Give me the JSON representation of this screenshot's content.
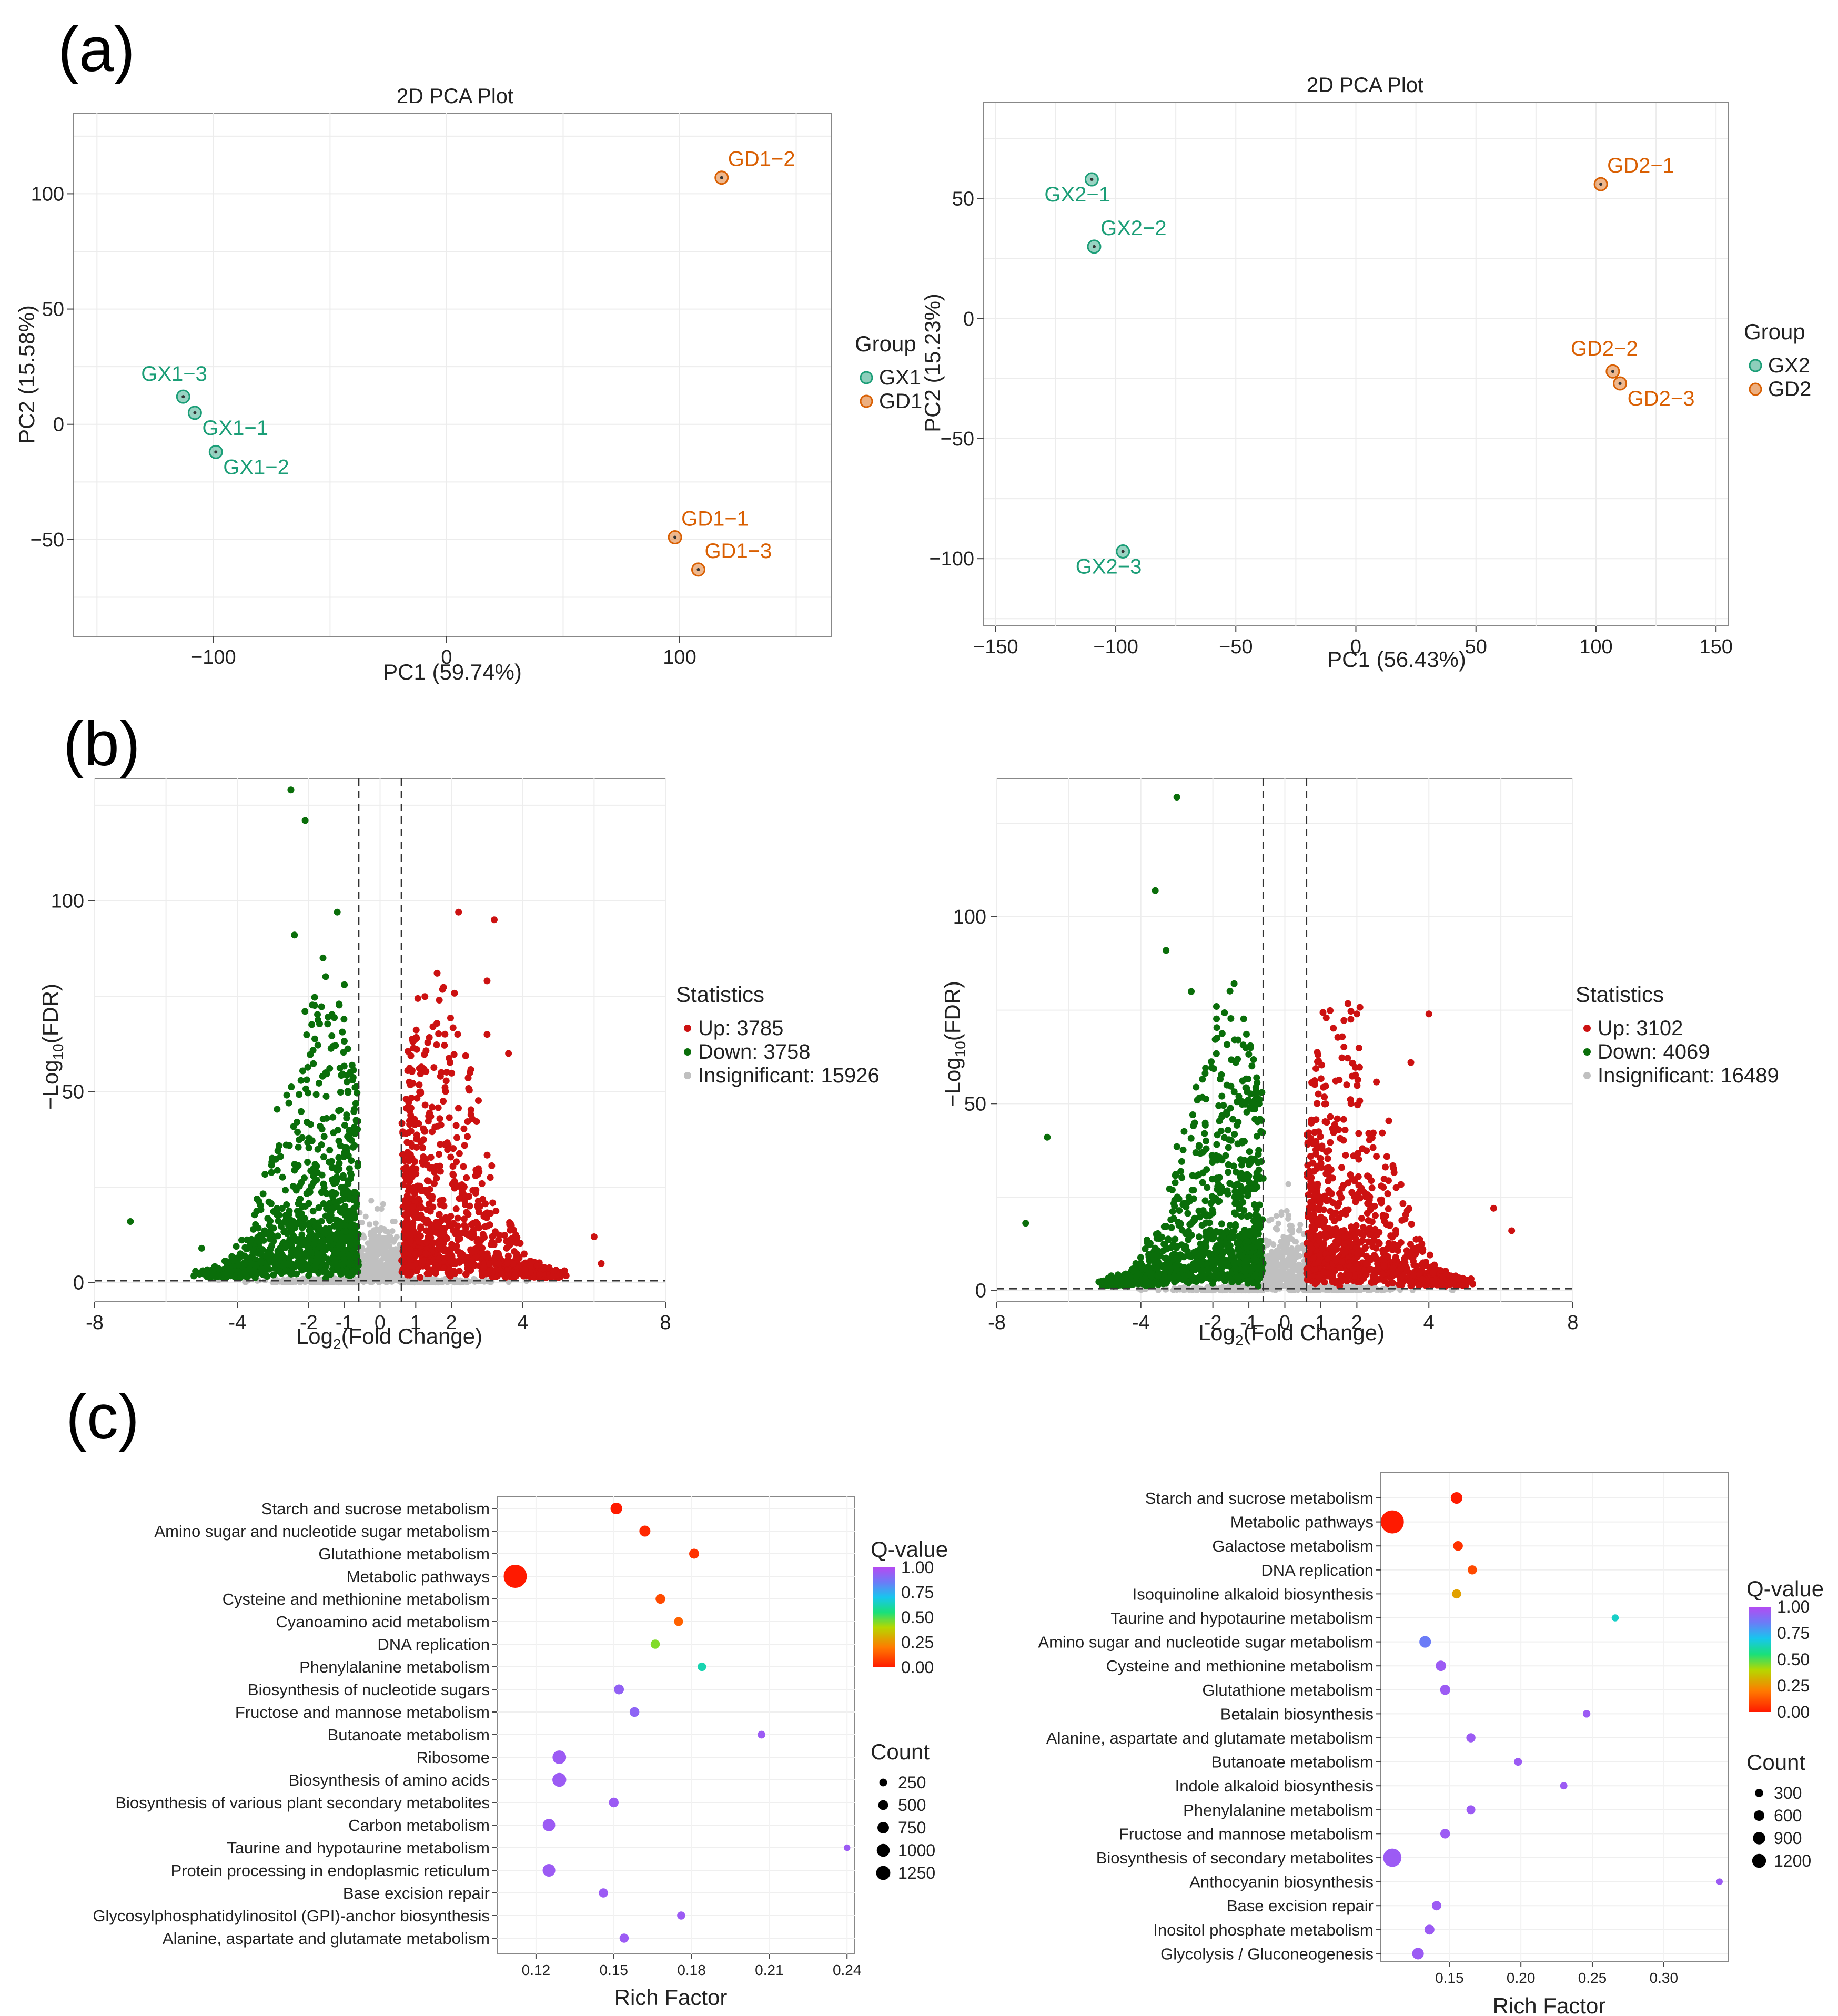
{
  "panels": {
    "a": "(a)",
    "b": "(b)",
    "c": "(c)"
  },
  "colors": {
    "gx": "#1b9e77",
    "gd": "#d95f02",
    "up": "#cc1111",
    "down": "#0a6e0a",
    "ns": "#c0c0c0"
  },
  "chart_data": [
    {
      "type": "scatter",
      "id": "pca1",
      "title": "2D PCA Plot",
      "xlabel": "PC1 (59.74%)",
      "ylabel": "PC2 (15.58%)",
      "xlim": [
        -160,
        165
      ],
      "ylim": [
        -92,
        135
      ],
      "xticks": [
        -100,
        0,
        100
      ],
      "xtick_labels": [
        "−100",
        "0",
        "100"
      ],
      "yticks": [
        -50,
        0,
        50,
        100
      ],
      "ytick_labels": [
        "−50",
        "0",
        "50",
        "100"
      ],
      "legend": {
        "title": "Group",
        "entries": [
          "GX1",
          "GD1"
        ]
      },
      "points": [
        {
          "label": "GD1−2",
          "x": 118,
          "y": 107,
          "group": 1,
          "anchor": "ne"
        },
        {
          "label": "GX1−3",
          "x": -113,
          "y": 12,
          "group": 0,
          "anchor": "nw"
        },
        {
          "label": "GX1−1",
          "x": -108,
          "y": 5,
          "group": 0,
          "anchor": "se"
        },
        {
          "label": "GX1−2",
          "x": -99,
          "y": -12,
          "group": 0,
          "anchor": "se"
        },
        {
          "label": "GD1−1",
          "x": 98,
          "y": -49,
          "group": 1,
          "anchor": "ne"
        },
        {
          "label": "GD1−3",
          "x": 108,
          "y": -63,
          "group": 1,
          "anchor": "ne"
        }
      ]
    },
    {
      "type": "scatter",
      "id": "pca2",
      "title": "2D PCA Plot",
      "xlabel": "PC1 (56.43%)",
      "ylabel": "PC2 (15.23%)",
      "xlim": [
        -155,
        155
      ],
      "ylim": [
        -128,
        90
      ],
      "xticks": [
        -150,
        -100,
        -50,
        0,
        50,
        100,
        150
      ],
      "xtick_labels": [
        "−150",
        "−100",
        "−50",
        "0",
        "50",
        "100",
        "150"
      ],
      "yticks": [
        -100,
        -50,
        0,
        50
      ],
      "ytick_labels": [
        "−100",
        "−50",
        "0",
        "50"
      ],
      "legend": {
        "title": "Group",
        "entries": [
          "GX2",
          "GD2"
        ]
      },
      "points": [
        {
          "label": "GX2−1",
          "x": -110,
          "y": 58,
          "group": 0,
          "anchor": "sw"
        },
        {
          "label": "GD2−1",
          "x": 102,
          "y": 56,
          "group": 1,
          "anchor": "ne"
        },
        {
          "label": "GX2−2",
          "x": -109,
          "y": 30,
          "group": 0,
          "anchor": "ne"
        },
        {
          "label": "GD2−2",
          "x": 107,
          "y": -22,
          "group": 1,
          "anchor": "nw"
        },
        {
          "label": "GD2−3",
          "x": 110,
          "y": -27,
          "group": 1,
          "anchor": "se"
        },
        {
          "label": "GX2−3",
          "x": -97,
          "y": -97,
          "group": 0,
          "anchor": "sw"
        }
      ]
    },
    {
      "type": "scatter",
      "id": "volcano1",
      "xlabel": "Log2(Fold Change)",
      "ylabel": "−Log10(FDR)",
      "xlim": [
        -8,
        8
      ],
      "ylim": [
        -5,
        132
      ],
      "xticks": [
        -8,
        -4,
        -2,
        -1,
        0,
        1,
        2,
        4,
        8
      ],
      "xtick_labels": [
        "-8",
        "-4",
        "-2",
        "-1",
        "0",
        "1",
        "2",
        "4",
        "8"
      ],
      "yticks": [
        0,
        50,
        100
      ],
      "ytick_labels": [
        "0",
        "50",
        "100"
      ],
      "fc_threshold": 0.6,
      "fdr_threshold": 0.5,
      "legend": {
        "title": "Statistics",
        "entries": [
          "Up: 3785",
          "Down: 3758",
          "Insignificant: 15926"
        ]
      },
      "counts": {
        "up": 3785,
        "down": 3758,
        "ns": 15926
      },
      "highlights": [
        {
          "x": -2.5,
          "y": 129
        },
        {
          "x": -2.1,
          "y": 121
        },
        {
          "x": -1.2,
          "y": 97
        },
        {
          "x": -2.4,
          "y": 91
        },
        {
          "x": -1.6,
          "y": 85
        },
        {
          "x": -1.0,
          "y": 78
        },
        {
          "x": 2.2,
          "y": 97
        },
        {
          "x": 3.2,
          "y": 95
        },
        {
          "x": 1.6,
          "y": 81
        },
        {
          "x": 3.0,
          "y": 79
        },
        {
          "x": 3.0,
          "y": 65
        },
        {
          "x": 3.6,
          "y": 60
        },
        {
          "x": -7.0,
          "y": 16
        },
        {
          "x": -5.0,
          "y": 9
        },
        {
          "x": 6.0,
          "y": 12
        },
        {
          "x": 6.2,
          "y": 5
        }
      ]
    },
    {
      "type": "scatter",
      "id": "volcano2",
      "xlabel": "Log2(Fold Change)",
      "ylabel": "−Log10(FDR)",
      "xlim": [
        -8,
        8
      ],
      "ylim": [
        -3,
        137
      ],
      "xticks": [
        -8,
        -4,
        -2,
        -1,
        0,
        1,
        2,
        4,
        8
      ],
      "xtick_labels": [
        "-8",
        "-4",
        "-2",
        "-1",
        "0",
        "1",
        "2",
        "4",
        "8"
      ],
      "yticks": [
        0,
        50,
        100
      ],
      "ytick_labels": [
        "0",
        "50",
        "100"
      ],
      "fc_threshold": 0.6,
      "fdr_threshold": 0.5,
      "legend": {
        "title": "Statistics",
        "entries": [
          "Up: 3102",
          "Down: 4069",
          "Insignificant: 16489"
        ]
      },
      "counts": {
        "up": 3102,
        "down": 4069,
        "ns": 16489
      },
      "highlights": [
        {
          "x": -3.0,
          "y": 132
        },
        {
          "x": -3.6,
          "y": 107
        },
        {
          "x": -3.3,
          "y": 91
        },
        {
          "x": -2.6,
          "y": 80
        },
        {
          "x": -1.9,
          "y": 76
        },
        {
          "x": 2.0,
          "y": 74
        },
        {
          "x": 4.0,
          "y": 74
        },
        {
          "x": 3.5,
          "y": 61
        },
        {
          "x": -6.6,
          "y": 41
        },
        {
          "x": 5.8,
          "y": 22
        },
        {
          "x": 6.3,
          "y": 16
        },
        {
          "x": -7.2,
          "y": 18
        }
      ]
    },
    {
      "type": "scatter",
      "id": "kegg1",
      "xlabel": "Rich Factor",
      "xlim": [
        0.105,
        0.243
      ],
      "xticks": [
        0.12,
        0.15,
        0.18,
        0.21,
        0.24
      ],
      "xtick_labels": [
        "0.12",
        "0.15",
        "0.18",
        "0.21",
        "0.24"
      ],
      "qlegend": {
        "title": "Q-value",
        "labels": [
          "1.00",
          "0.75",
          "0.50",
          "0.25",
          "0.00"
        ]
      },
      "count_legend": {
        "title": "Count",
        "labels": [
          "250",
          "500",
          "750",
          "1000",
          "1250"
        ],
        "values": [
          250,
          500,
          750,
          1000,
          1250
        ]
      },
      "count_max": 1300,
      "pathways": [
        {
          "name": "Starch and sucrose metabolism",
          "rich": 0.151,
          "q": 0.0,
          "count": 200
        },
        {
          "name": "Amino sugar and nucleotide sugar metabolism",
          "rich": 0.162,
          "q": 0.03,
          "count": 170
        },
        {
          "name": "Glutathione metabolism",
          "rich": 0.181,
          "q": 0.05,
          "count": 120
        },
        {
          "name": "Metabolic pathways",
          "rich": 0.112,
          "q": 0.0,
          "count": 1300
        },
        {
          "name": "Cysteine and methionine metabolism",
          "rich": 0.168,
          "q": 0.1,
          "count": 110
        },
        {
          "name": "Cyanoamino acid metabolism",
          "rich": 0.175,
          "q": 0.15,
          "count": 80
        },
        {
          "name": "DNA replication",
          "rich": 0.166,
          "q": 0.45,
          "count": 90
        },
        {
          "name": "Phenylalanine metabolism",
          "rich": 0.184,
          "q": 0.62,
          "count": 70
        },
        {
          "name": "Biosynthesis of nucleotide sugars",
          "rich": 0.152,
          "q": 0.93,
          "count": 120
        },
        {
          "name": "Fructose and mannose metabolism",
          "rich": 0.158,
          "q": 0.92,
          "count": 110
        },
        {
          "name": "Butanoate metabolism",
          "rich": 0.207,
          "q": 0.95,
          "count": 45
        },
        {
          "name": "Ribosome",
          "rich": 0.129,
          "q": 0.95,
          "count": 320
        },
        {
          "name": "Biosynthesis of amino acids",
          "rich": 0.129,
          "q": 0.95,
          "count": 340
        },
        {
          "name": "Biosynthesis of various plant secondary metabolites",
          "rich": 0.15,
          "q": 0.95,
          "count": 110
        },
        {
          "name": "Carbon metabolism",
          "rich": 0.125,
          "q": 0.95,
          "count": 250
        },
        {
          "name": "Taurine and hypotaurine metabolism",
          "rich": 0.24,
          "q": 0.95,
          "count": 20
        },
        {
          "name": "Protein processing in endoplasmic reticulum",
          "rich": 0.125,
          "q": 0.95,
          "count": 260
        },
        {
          "name": "Base excision repair",
          "rich": 0.146,
          "q": 0.95,
          "count": 90
        },
        {
          "name": "Glycosylphosphatidylinositol (GPI)-anchor biosynthesis",
          "rich": 0.176,
          "q": 0.95,
          "count": 55
        },
        {
          "name": "Alanine, aspartate and glutamate metabolism",
          "rich": 0.154,
          "q": 0.95,
          "count": 90
        }
      ]
    },
    {
      "type": "scatter",
      "id": "kegg2",
      "xlabel": "Rich Factor",
      "xlim": [
        0.102,
        0.345
      ],
      "xticks": [
        0.15,
        0.2,
        0.25,
        0.3
      ],
      "xtick_labels": [
        "0.15",
        "0.20",
        "0.25",
        "0.30"
      ],
      "qlegend": {
        "title": "Q-value",
        "labels": [
          "1.00",
          "0.75",
          "0.50",
          "0.25",
          "0.00"
        ]
      },
      "count_legend": {
        "title": "Count",
        "labels": [
          "300",
          "600",
          "900",
          "1200"
        ],
        "values": [
          300,
          600,
          900,
          1200
        ]
      },
      "count_max": 1300,
      "pathways": [
        {
          "name": "Starch and sucrose metabolism",
          "rich": 0.155,
          "q": 0.0,
          "count": 200
        },
        {
          "name": "Metabolic pathways",
          "rich": 0.11,
          "q": 0.0,
          "count": 1300
        },
        {
          "name": "Galactose metabolism",
          "rich": 0.156,
          "q": 0.05,
          "count": 110
        },
        {
          "name": "DNA replication",
          "rich": 0.166,
          "q": 0.1,
          "count": 90
        },
        {
          "name": "Isoquinoline alkaloid biosynthesis",
          "rich": 0.155,
          "q": 0.28,
          "count": 90
        },
        {
          "name": "Taurine and hypotaurine metabolism",
          "rich": 0.266,
          "q": 0.65,
          "count": 30
        },
        {
          "name": "Amino sugar and nucleotide sugar metabolism",
          "rich": 0.133,
          "q": 0.85,
          "count": 200
        },
        {
          "name": "Cysteine and methionine metabolism",
          "rich": 0.144,
          "q": 0.95,
          "count": 140
        },
        {
          "name": "Glutathione metabolism",
          "rich": 0.147,
          "q": 0.95,
          "count": 130
        },
        {
          "name": "Betalain biosynthesis",
          "rich": 0.246,
          "q": 0.95,
          "count": 40
        },
        {
          "name": "Alanine, aspartate and glutamate metabolism",
          "rich": 0.165,
          "q": 0.95,
          "count": 90
        },
        {
          "name": "Butanoate metabolism",
          "rich": 0.198,
          "q": 0.95,
          "count": 50
        },
        {
          "name": "Indole alkaloid biosynthesis",
          "rich": 0.23,
          "q": 0.95,
          "count": 35
        },
        {
          "name": "Phenylalanine metabolism",
          "rich": 0.165,
          "q": 0.95,
          "count": 80
        },
        {
          "name": "Fructose and mannose metabolism",
          "rich": 0.147,
          "q": 0.95,
          "count": 110
        },
        {
          "name": "Biosynthesis of secondary metabolites",
          "rich": 0.11,
          "q": 0.95,
          "count": 720
        },
        {
          "name": "Anthocyanin biosynthesis",
          "rich": 0.339,
          "q": 0.95,
          "count": 20
        },
        {
          "name": "Base excision repair",
          "rich": 0.141,
          "q": 0.95,
          "count": 100
        },
        {
          "name": "Inositol phosphate metabolism",
          "rich": 0.136,
          "q": 0.95,
          "count": 120
        },
        {
          "name": "Glycolysis / Gluconeogenesis",
          "rich": 0.128,
          "q": 0.95,
          "count": 200
        }
      ]
    }
  ]
}
